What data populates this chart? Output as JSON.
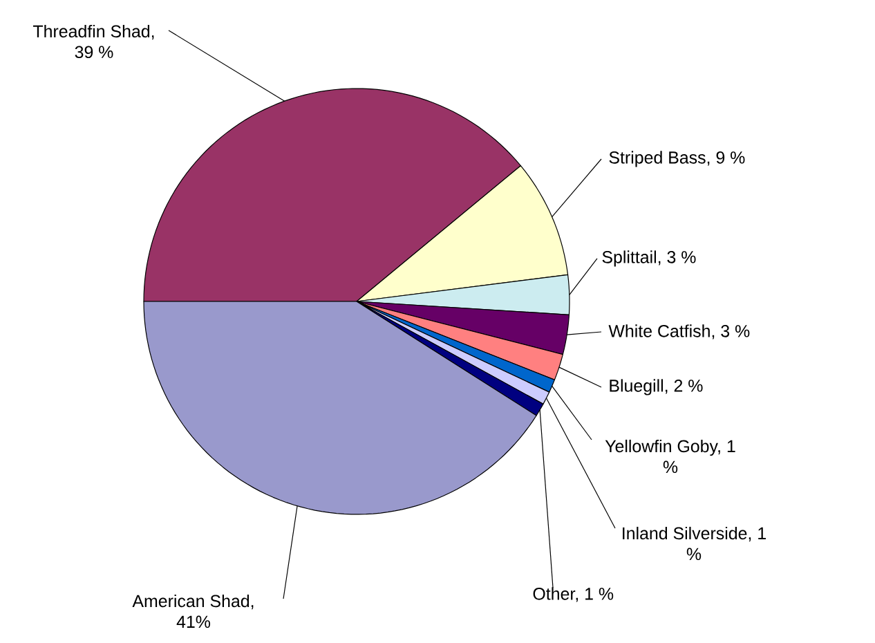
{
  "chart_data": {
    "type": "pie",
    "categories": [
      "Threadfin Shad, 39 %",
      "Striped Bass, 9 %",
      "Splittail, 3 %",
      "White Catfish, 3 %",
      "Bluegill, 2 %",
      "Yellowfin Goby, 1 %",
      "Inland Silverside, 1 %",
      "Other, 1 %",
      "American Shad, 41%"
    ],
    "values": [
      39,
      9,
      3,
      3,
      2,
      1,
      1,
      1,
      41
    ],
    "colors": [
      "#993366",
      "#ffffcc",
      "#ccecf0",
      "#660066",
      "#ff8080",
      "#0066cc",
      "#ccccff",
      "#000080",
      "#9999cc"
    ]
  }
}
